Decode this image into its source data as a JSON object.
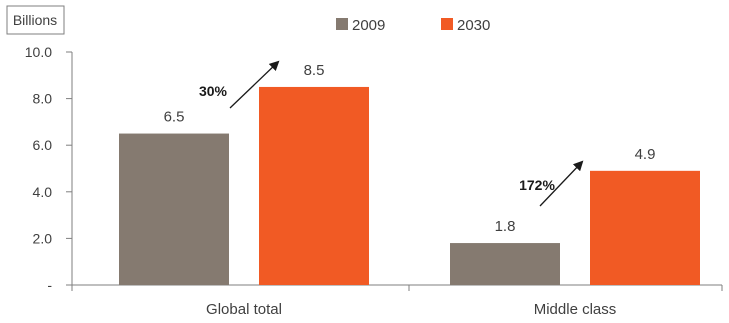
{
  "chart_data": {
    "type": "bar",
    "unit_label": "Billions",
    "categories": [
      "Global total",
      "Middle class"
    ],
    "series": [
      {
        "name": "2009",
        "values": [
          6.5,
          1.8
        ],
        "color": "#857a70"
      },
      {
        "name": "2030",
        "values": [
          8.5,
          4.9
        ],
        "color": "#f15a24"
      }
    ],
    "data_labels": [
      [
        "6.5",
        "1.8"
      ],
      [
        "8.5",
        "4.9"
      ]
    ],
    "growth_annotations": [
      "30%",
      "172%"
    ],
    "y_ticks": [
      "-",
      "2.0",
      "4.0",
      "6.0",
      "8.0",
      "10.0"
    ],
    "ylim": [
      0,
      10
    ],
    "legend_position": "top",
    "grid": false
  }
}
